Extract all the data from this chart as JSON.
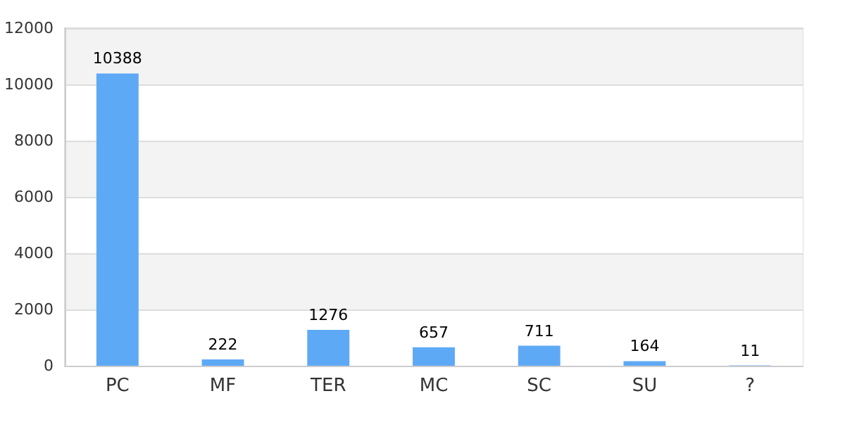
{
  "chart_data": {
    "type": "bar",
    "categories": [
      "PC",
      "MF",
      "TER",
      "MC",
      "SC",
      "SU",
      "?"
    ],
    "values": [
      10388,
      222,
      1276,
      657,
      711,
      164,
      11
    ],
    "color": "#5ea9f6",
    "ylim": [
      0,
      12000
    ],
    "yticks": [
      0,
      2000,
      4000,
      6000,
      8000,
      10000,
      12000
    ],
    "grid": true,
    "data_labels": true
  }
}
